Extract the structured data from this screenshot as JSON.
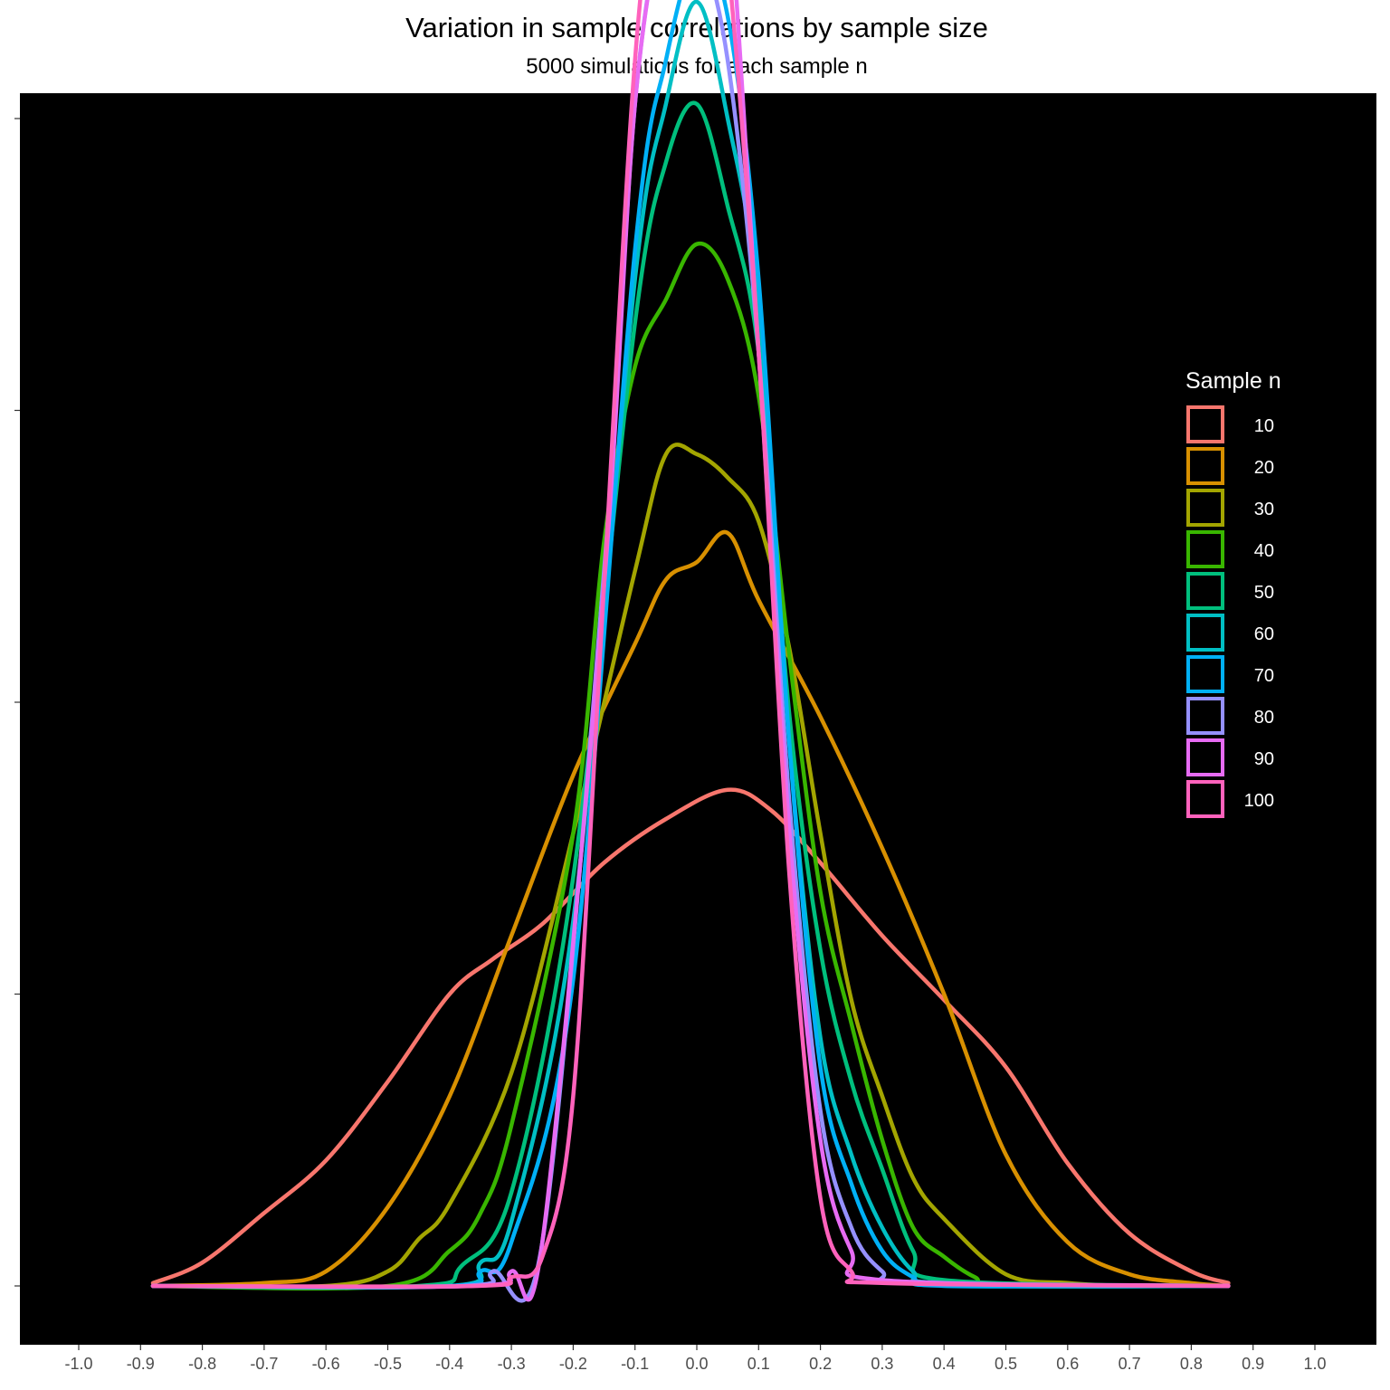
{
  "chart_data": {
    "type": "line",
    "title": "Variation in sample correlations by sample size",
    "subtitle": "5000 simulations for each sample n",
    "xlabel": "",
    "ylabel": "",
    "xlim": [
      -1.1,
      1.1
    ],
    "ylim": [
      -0.24,
      4.95
    ],
    "x_ticks": [
      -1.0,
      -0.9,
      -0.8,
      -0.7,
      -0.6,
      -0.5,
      -0.4,
      -0.3,
      -0.2,
      -0.1,
      0.0,
      0.1,
      0.2,
      0.3,
      0.4,
      0.5,
      0.6,
      0.7,
      0.8,
      0.9,
      1.0
    ],
    "x_tick_labels": [
      "-1.0",
      "-0.9",
      "-0.8",
      "-0.7",
      "-0.6",
      "-0.5",
      "-0.4",
      "-0.3",
      "-0.2",
      "-0.1",
      "0.0",
      "0.1",
      "0.2",
      "0.3",
      "0.4",
      "0.5",
      "0.6",
      "0.7",
      "0.8",
      "0.9",
      "1.0"
    ],
    "y_ticks": [
      0,
      1,
      2,
      3,
      4
    ],
    "y_tick_labels_visible": false,
    "grid": false,
    "panel_background": "#000000",
    "legend": {
      "title": "Sample n",
      "position": "right",
      "entries": [
        "10",
        "20",
        "30",
        "40",
        "50",
        "60",
        "70",
        "80",
        "90",
        "100"
      ]
    },
    "series": [
      {
        "name": "10",
        "color": "#F8766D",
        "x": [
          -0.88,
          -0.8,
          -0.7,
          -0.6,
          -0.5,
          -0.4,
          -0.33,
          -0.25,
          -0.15,
          -0.05,
          0.05,
          0.12,
          0.2,
          0.3,
          0.4,
          0.5,
          0.6,
          0.7,
          0.8,
          0.86
        ],
        "y": [
          0.01,
          0.08,
          0.25,
          0.43,
          0.7,
          1.0,
          1.12,
          1.24,
          1.45,
          1.6,
          1.7,
          1.63,
          1.45,
          1.2,
          0.98,
          0.75,
          0.42,
          0.18,
          0.05,
          0.01
        ]
      },
      {
        "name": "20",
        "color": "#D89000",
        "x": [
          -0.88,
          -0.7,
          -0.6,
          -0.5,
          -0.4,
          -0.3,
          -0.2,
          -0.1,
          -0.05,
          0.0,
          0.05,
          0.1,
          0.2,
          0.3,
          0.4,
          0.5,
          0.6,
          0.7,
          0.8,
          0.86
        ],
        "y": [
          0.0,
          0.01,
          0.05,
          0.27,
          0.65,
          1.2,
          1.75,
          2.2,
          2.42,
          2.48,
          2.58,
          2.35,
          1.95,
          1.5,
          1.0,
          0.45,
          0.15,
          0.04,
          0.01,
          0.0
        ]
      },
      {
        "name": "30",
        "color": "#A3A500",
        "x": [
          -0.88,
          -0.6,
          -0.5,
          -0.45,
          -0.4,
          -0.3,
          -0.2,
          -0.1,
          -0.05,
          0.0,
          0.05,
          0.1,
          0.15,
          0.2,
          0.25,
          0.3,
          0.35,
          0.4,
          0.5,
          0.6,
          0.7,
          0.86
        ],
        "y": [
          0.0,
          0.0,
          0.05,
          0.16,
          0.28,
          0.73,
          1.55,
          2.45,
          2.85,
          2.85,
          2.77,
          2.62,
          2.18,
          1.55,
          0.98,
          0.65,
          0.37,
          0.23,
          0.04,
          0.01,
          0.0,
          0.0
        ]
      },
      {
        "name": "40",
        "color": "#39B600",
        "x": [
          -0.88,
          -0.5,
          -0.4,
          -0.35,
          -0.3,
          -0.2,
          -0.15,
          -0.1,
          -0.05,
          0.0,
          0.05,
          0.1,
          0.15,
          0.2,
          0.25,
          0.3,
          0.35,
          0.4,
          0.45,
          0.5,
          0.86
        ],
        "y": [
          0.0,
          0.0,
          0.12,
          0.25,
          0.55,
          1.55,
          2.55,
          3.15,
          3.38,
          3.57,
          3.45,
          3.05,
          2.15,
          1.35,
          0.9,
          0.5,
          0.2,
          0.1,
          0.03,
          0.0,
          0.0
        ]
      },
      {
        "name": "50",
        "color": "#00BF7D",
        "x": [
          -0.88,
          -0.45,
          -0.38,
          -0.3,
          -0.2,
          -0.1,
          -0.05,
          0.0,
          0.05,
          0.1,
          0.15,
          0.2,
          0.25,
          0.3,
          0.35,
          0.4,
          0.86
        ],
        "y": [
          0.0,
          0.0,
          0.07,
          0.32,
          1.4,
          3.3,
          3.85,
          4.05,
          3.7,
          3.2,
          1.95,
          1.15,
          0.7,
          0.4,
          0.12,
          0.02,
          0.0
        ]
      },
      {
        "name": "60",
        "color": "#00BFC4",
        "x": [
          -0.88,
          -0.4,
          -0.35,
          -0.3,
          -0.2,
          -0.1,
          -0.05,
          0.0,
          0.05,
          0.1,
          0.15,
          0.2,
          0.25,
          0.3,
          0.35,
          0.4,
          0.86
        ],
        "y": [
          0.0,
          0.0,
          0.08,
          0.22,
          1.25,
          3.45,
          4.05,
          4.4,
          4.0,
          3.35,
          1.85,
          0.85,
          0.45,
          0.2,
          0.05,
          0.01,
          0.0
        ]
      },
      {
        "name": "70",
        "color": "#00B0F6",
        "x": [
          -0.88,
          -0.4,
          -0.35,
          -0.3,
          -0.2,
          -0.1,
          -0.05,
          0.0,
          0.05,
          0.1,
          0.15,
          0.2,
          0.25,
          0.3,
          0.35,
          0.4,
          0.86
        ],
        "y": [
          0.0,
          0.0,
          0.05,
          0.15,
          1.05,
          3.55,
          4.2,
          4.55,
          4.35,
          3.45,
          1.85,
          0.75,
          0.35,
          0.12,
          0.03,
          0.0,
          0.0
        ]
      },
      {
        "name": "80",
        "color": "#9590FF",
        "x": [
          -0.88,
          -0.38,
          -0.33,
          -0.25,
          -0.15,
          -0.1,
          -0.05,
          -0.02,
          0.0,
          0.05,
          0.1,
          0.15,
          0.2,
          0.25,
          0.3,
          0.35,
          0.86
        ],
        "y": [
          0.0,
          0.0,
          0.05,
          0.15,
          2.45,
          4.05,
          4.75,
          4.8,
          4.65,
          4.2,
          3.2,
          1.65,
          0.6,
          0.2,
          0.05,
          0.01,
          0.0
        ]
      },
      {
        "name": "90",
        "color": "#E76BF3",
        "x": [
          -0.88,
          -0.36,
          -0.3,
          -0.25,
          -0.15,
          -0.1,
          -0.05,
          -0.02,
          0.0,
          0.02,
          0.05,
          0.1,
          0.15,
          0.2,
          0.25,
          0.3,
          0.86
        ],
        "y": [
          0.0,
          0.0,
          0.05,
          0.15,
          2.4,
          4.05,
          4.72,
          4.75,
          4.9,
          4.95,
          4.8,
          3.2,
          1.55,
          0.5,
          0.12,
          0.02,
          0.0
        ]
      },
      {
        "name": "100",
        "color": "#FF62BC",
        "x": [
          -0.88,
          -0.36,
          -0.3,
          -0.25,
          -0.2,
          -0.15,
          -0.1,
          -0.05,
          -0.02,
          0.0,
          0.02,
          0.05,
          0.1,
          0.15,
          0.2,
          0.25,
          0.3,
          0.86
        ],
        "y": [
          0.0,
          0.0,
          0.03,
          0.1,
          0.65,
          2.4,
          4.2,
          5.1,
          5.25,
          5.15,
          4.95,
          4.55,
          3.2,
          1.4,
          0.3,
          0.05,
          0.01,
          0.0
        ]
      }
    ]
  }
}
